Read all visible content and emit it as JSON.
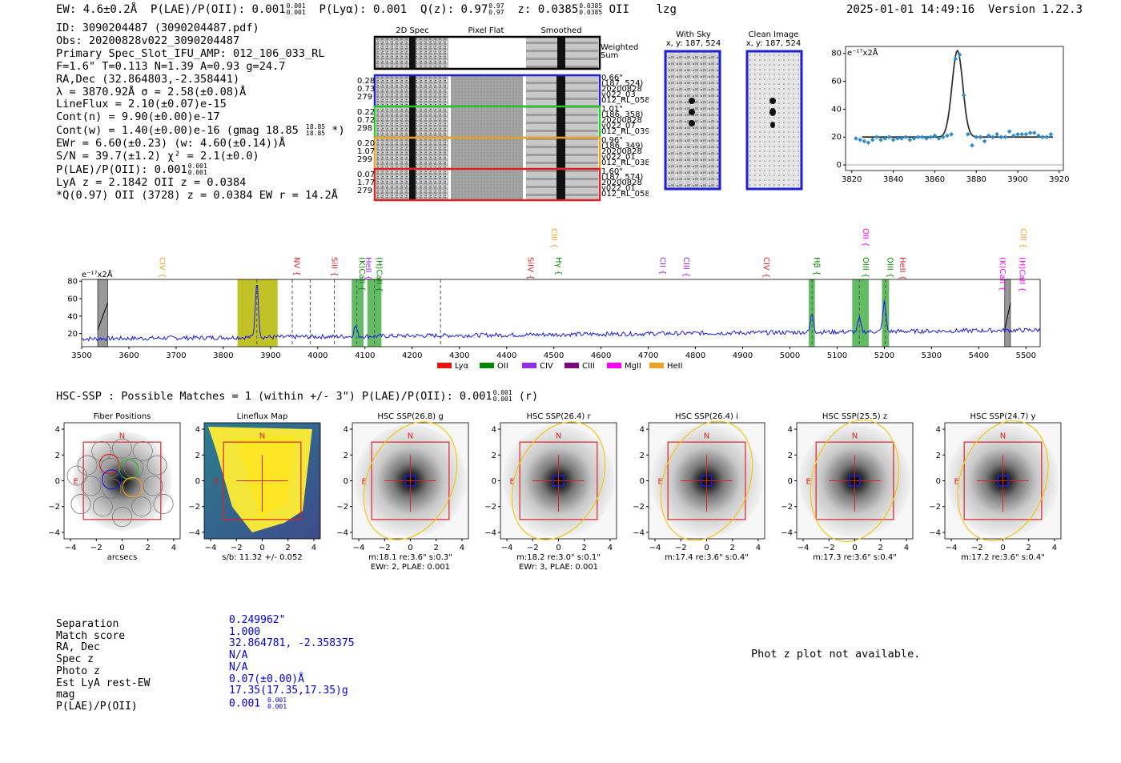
{
  "header": {
    "ew": "EW: 4.6±0.2Å",
    "plae_label": "P(LAE)/P(OII): 0.001",
    "plae_sup": "0.001",
    "plae_sub": "0.001",
    "plya": "P(Lyα): 0.001",
    "qz_label": "Q(z): 0.97",
    "qz_sup": "0.97",
    "qz_sub": "0.97",
    "z_label": "z: 0.0385",
    "z_sup": "0.0385",
    "z_sub": "0.0385",
    "line": "OII",
    "tag": "lzg",
    "timestamp": "2025-01-01 14:49:16",
    "version": "Version 1.22.3"
  },
  "info": {
    "id": "ID: 3090204487 (3090204487.pdf)",
    "obs": "Obs: 20200828v022_3090204487",
    "primary": "Primary Spec_Slot_IFU_AMP: 012_106_033_RL",
    "params": "F=1.6\"  T=0.113  N=1.39  A=0.93  g=24.7",
    "radec": "RA,Dec (32.864803,-2.358441)",
    "lambda": "λ = 3870.92Å  σ = 2.58(±0.08)Å",
    "lineflux": "LineFlux = 2.10(±0.07)e-15",
    "contn": "Cont(n) = 9.90(±0.00)e-17",
    "contw": "Cont(w) = 1.40(±0.00)e-16 (gmag 18.85",
    "contw_sup": "18.85",
    "contw_sub": "18.85",
    "contw_end": "*)",
    "ewr": "EWr = 6.60(±0.23) (w: 4.60(±0.14))Å",
    "sn": "S/N = 39.7(±1.2)  χ² = 2.1(±0.0)",
    "plae": "P(LAE)/P(OII): 0.001",
    "plae_sup": "0.001",
    "plae_sub": "0.001",
    "lya": "LyA z = 2.1842  OII z = 0.0384",
    "q": "*Q(0.97) OII (3728) z = 0.0384  EW r = 14.2Å"
  },
  "cutouts": {
    "col1": "2D Spec",
    "col2": "Pixel Flat",
    "col3": "Smoothed",
    "weighted": "Weighted",
    "sum": "Sum",
    "rows": [
      {
        "left": [
          "0.28",
          "0.73",
          "279"
        ],
        "right": [
          "0.66\"",
          "(187, 524)",
          "20200828",
          "v022_03",
          "012_RL_058"
        ],
        "color": "#1f1fd6"
      },
      {
        "left": [
          "0.22",
          "0.72",
          "298"
        ],
        "right": [
          "1.01\"",
          "(186, 358)",
          "20200828",
          "v022_07",
          "012_RL_039"
        ],
        "color": "#22cc22"
      },
      {
        "left": [
          "0.20",
          "1.07",
          "299"
        ],
        "right": [
          "0.96\"",
          "(186, 349)",
          "20200828",
          "v022_01",
          "012_RL_038"
        ],
        "color": "#f0a020"
      },
      {
        "left": [
          "0.07",
          "1.77",
          "279"
        ],
        "right": [
          "1.60\"",
          "(187, 574)",
          "20200828",
          "v022_01",
          "012_RL_058"
        ],
        "color": "#dd2222"
      }
    ]
  },
  "sky": {
    "with_title": "With Sky",
    "with_coords": "x, y: 187, 524",
    "clean_title": "Clean Image",
    "clean_coords": "x, y: 187, 524"
  },
  "zoom_chart": {
    "unit": "e⁻¹⁷x2Å",
    "x_ticks": [
      "3820",
      "3840",
      "3860",
      "3880",
      "3900",
      "3920"
    ],
    "y_ticks": [
      "0",
      "20",
      "40",
      "60",
      "80"
    ]
  },
  "chart_data": [
    {
      "type": "scatter",
      "title": "",
      "xlabel": "",
      "ylabel": "e-17x2Å",
      "xlim": [
        3817,
        3922
      ],
      "ylim": [
        -4,
        85
      ],
      "points_x": [
        3822,
        3824,
        3826,
        3828,
        3830,
        3832,
        3834,
        3836,
        3838,
        3840,
        3842,
        3844,
        3846,
        3848,
        3850,
        3852,
        3854,
        3856,
        3858,
        3860,
        3862,
        3864,
        3866,
        3868,
        3870,
        3872,
        3874,
        3876,
        3878,
        3880,
        3882,
        3884,
        3886,
        3888,
        3890,
        3892,
        3894,
        3896,
        3898,
        3900,
        3902,
        3904,
        3906,
        3908,
        3910,
        3912,
        3914,
        3916
      ],
      "points_y": [
        19,
        18,
        17,
        16,
        18,
        20,
        18,
        19,
        20,
        18,
        19,
        19,
        20,
        18,
        19,
        20,
        20,
        19,
        20,
        21,
        19,
        20,
        21,
        22,
        76,
        79,
        50,
        22,
        14,
        20,
        20,
        17,
        21,
        20,
        22,
        20,
        20,
        24,
        21,
        22,
        22,
        22,
        23,
        23,
        21,
        20,
        20,
        22
      ],
      "fit": {
        "center": 3870.92,
        "sigma": 2.58,
        "amplitude": 62,
        "continuum": 20
      }
    },
    {
      "type": "line",
      "title": "",
      "ylabel": "e-17x2Å",
      "xlim": [
        3500,
        5530
      ],
      "ylim": [
        5,
        82
      ],
      "x_ticks": [
        "3500",
        "3600",
        "3700",
        "3800",
        "3900",
        "4000",
        "4100",
        "4200",
        "4300",
        "4400",
        "4500",
        "4600",
        "4700",
        "4800",
        "4900",
        "5000",
        "5100",
        "5200",
        "5300",
        "5400",
        "5500"
      ],
      "y_ticks": [
        "20",
        "40",
        "60",
        "80"
      ],
      "baseline": 14,
      "peaks": [
        {
          "x": 3871,
          "y": 78
        },
        {
          "x": 5047,
          "y": 35
        },
        {
          "x": 5147,
          "y": 29
        },
        {
          "x": 5200,
          "y": 48
        },
        {
          "x": 4080,
          "y": 26
        }
      ],
      "dashed_lines": [
        3871,
        3946,
        3984,
        4035,
        4083,
        4120,
        4260,
        5047,
        5147,
        5202
      ],
      "bands": [
        {
          "x0": 3830,
          "x1": 3915,
          "color": "#b5b700"
        },
        {
          "x0": 4072,
          "x1": 4097,
          "color": "#48b048"
        },
        {
          "x0": 4105,
          "x1": 4135,
          "color": "#48b048"
        },
        {
          "x0": 5040,
          "x1": 5053,
          "color": "#48b048"
        },
        {
          "x0": 5132,
          "x1": 5167,
          "color": "#48b048"
        },
        {
          "x0": 5195,
          "x1": 5210,
          "color": "#48b048"
        }
      ],
      "masked": [
        {
          "x0": 3534,
          "x1": 3555
        },
        {
          "x0": 5455,
          "x1": 5467
        }
      ],
      "line_labels": [
        {
          "x": 3660,
          "text": "CIV",
          "color": "#f0a020",
          "row": 1
        },
        {
          "x": 3945,
          "text": "NV",
          "color": "#dd2222",
          "row": 1
        },
        {
          "x": 4025,
          "text": "SiII",
          "color": "#dd2222",
          "row": 1
        },
        {
          "x": 4083,
          "text": "(K)CaII",
          "color": "#008800",
          "row": 1
        },
        {
          "x": 4097,
          "text": "HeII",
          "color": "#a020f0",
          "row": 1
        },
        {
          "x": 4120,
          "text": "(H)CaII",
          "color": "#008800",
          "row": 1
        },
        {
          "x": 4440,
          "text": "SiIV",
          "color": "#dd2222",
          "row": 1
        },
        {
          "x": 4490,
          "text": "CIII",
          "color": "#f0a020",
          "row": 0
        },
        {
          "x": 4500,
          "text": "Hγ",
          "color": "#008800",
          "row": 1
        },
        {
          "x": 4720,
          "text": "CII",
          "color": "#a020f0",
          "row": 1
        },
        {
          "x": 4770,
          "text": "CIII",
          "color": "#a020f0",
          "row": 1
        },
        {
          "x": 4940,
          "text": "CIV",
          "color": "#dd2222",
          "row": 1
        },
        {
          "x": 5047,
          "text": "Hβ",
          "color": "#008800",
          "row": 1
        },
        {
          "x": 5150,
          "text": "OII",
          "color": "#ff00ff",
          "row": 0
        },
        {
          "x": 5150,
          "text": "OIII",
          "color": "#008800",
          "row": 1
        },
        {
          "x": 5202,
          "text": "OIII",
          "color": "#008800",
          "row": 1
        },
        {
          "x": 5228,
          "text": "HeII",
          "color": "#dd2222",
          "row": 1
        },
        {
          "x": 5440,
          "text": "(K)CaII",
          "color": "#ff00ff",
          "row": 1
        },
        {
          "x": 5482,
          "text": "(H)CaII",
          "color": "#ff00ff",
          "row": 1
        },
        {
          "x": 5484,
          "text": "CIII",
          "color": "#f0a020",
          "row": 0
        }
      ],
      "legend": [
        {
          "text": "Lyα",
          "color": "#ee1111"
        },
        {
          "text": "OII",
          "color": "#008800"
        },
        {
          "text": "CIV",
          "color": "#9030ee"
        },
        {
          "text": "CIII",
          "color": "#7a0a7a"
        },
        {
          "text": "MgII",
          "color": "#ff00ff"
        },
        {
          "text": "HeII",
          "color": "#f0a020"
        }
      ]
    }
  ],
  "spectrum": {
    "unit": "e⁻¹⁷x2Å"
  },
  "hsc": {
    "heading": "HSC-SSP : Possible Matches = 1 (within +/- 3\")  P(LAE)/P(OII): 0.001",
    "heading_sup": "0.001",
    "heading_sub": "0.001",
    "heading_end": "(r)",
    "panels": [
      {
        "title": "Fiber Positions",
        "caption1": "arcsecs",
        "caption2": ""
      },
      {
        "title": "Lineflux Map",
        "caption1": "s/b: 11.32 +/- 0.052",
        "caption2": ""
      },
      {
        "title": "HSC SSP(26.8) g",
        "caption1": "m:18.1  re:3.6\"  s:0.3\"",
        "caption2": "EWr: 2, PLAE: 0.001"
      },
      {
        "title": "HSC SSP(26.4) r",
        "caption1": "m:18.2  re:3.0\"  s:0.1\"",
        "caption2": "EWr: 3, PLAE: 0.001"
      },
      {
        "title": "HSC SSP(26.4) i",
        "caption1": "m:17.4  re:3.6\"  s:0.4\"",
        "caption2": ""
      },
      {
        "title": "HSC SSP(25.5) z",
        "caption1": "m:17.3  re:3.6\"  s:0.4\"",
        "caption2": ""
      },
      {
        "title": "HSC SSP(24.7) y",
        "caption1": "m:17.2  re:3.6\"  s:0.4\"",
        "caption2": ""
      }
    ],
    "ticks": [
      "−4",
      "−2",
      "0",
      "2",
      "4"
    ],
    "yticks": [
      "4",
      "2",
      "0",
      "−2",
      "−4"
    ],
    "n": "N",
    "e": "E"
  },
  "table": {
    "labels": [
      "Separation",
      "Match score",
      "RA, Dec",
      "Spec z",
      "Photo z",
      "Est LyA rest-EW",
      "mag",
      "P(LAE)/P(OII)"
    ],
    "values": [
      "0.249962\"",
      "1.000",
      "32.864781, -2.358375",
      "N/A",
      "N/A",
      "0.07(±0.00)Å",
      "17.35(17.35,17.35)g",
      "0.001"
    ],
    "plae_sup": "0.001",
    "plae_sub": "0.001"
  },
  "photz": "Phot z plot not available.",
  "colors": {
    "blue": "#0000dd",
    "red": "#dd2222",
    "frame_blue": "#1f1fd6",
    "gold": "#f5c518"
  }
}
